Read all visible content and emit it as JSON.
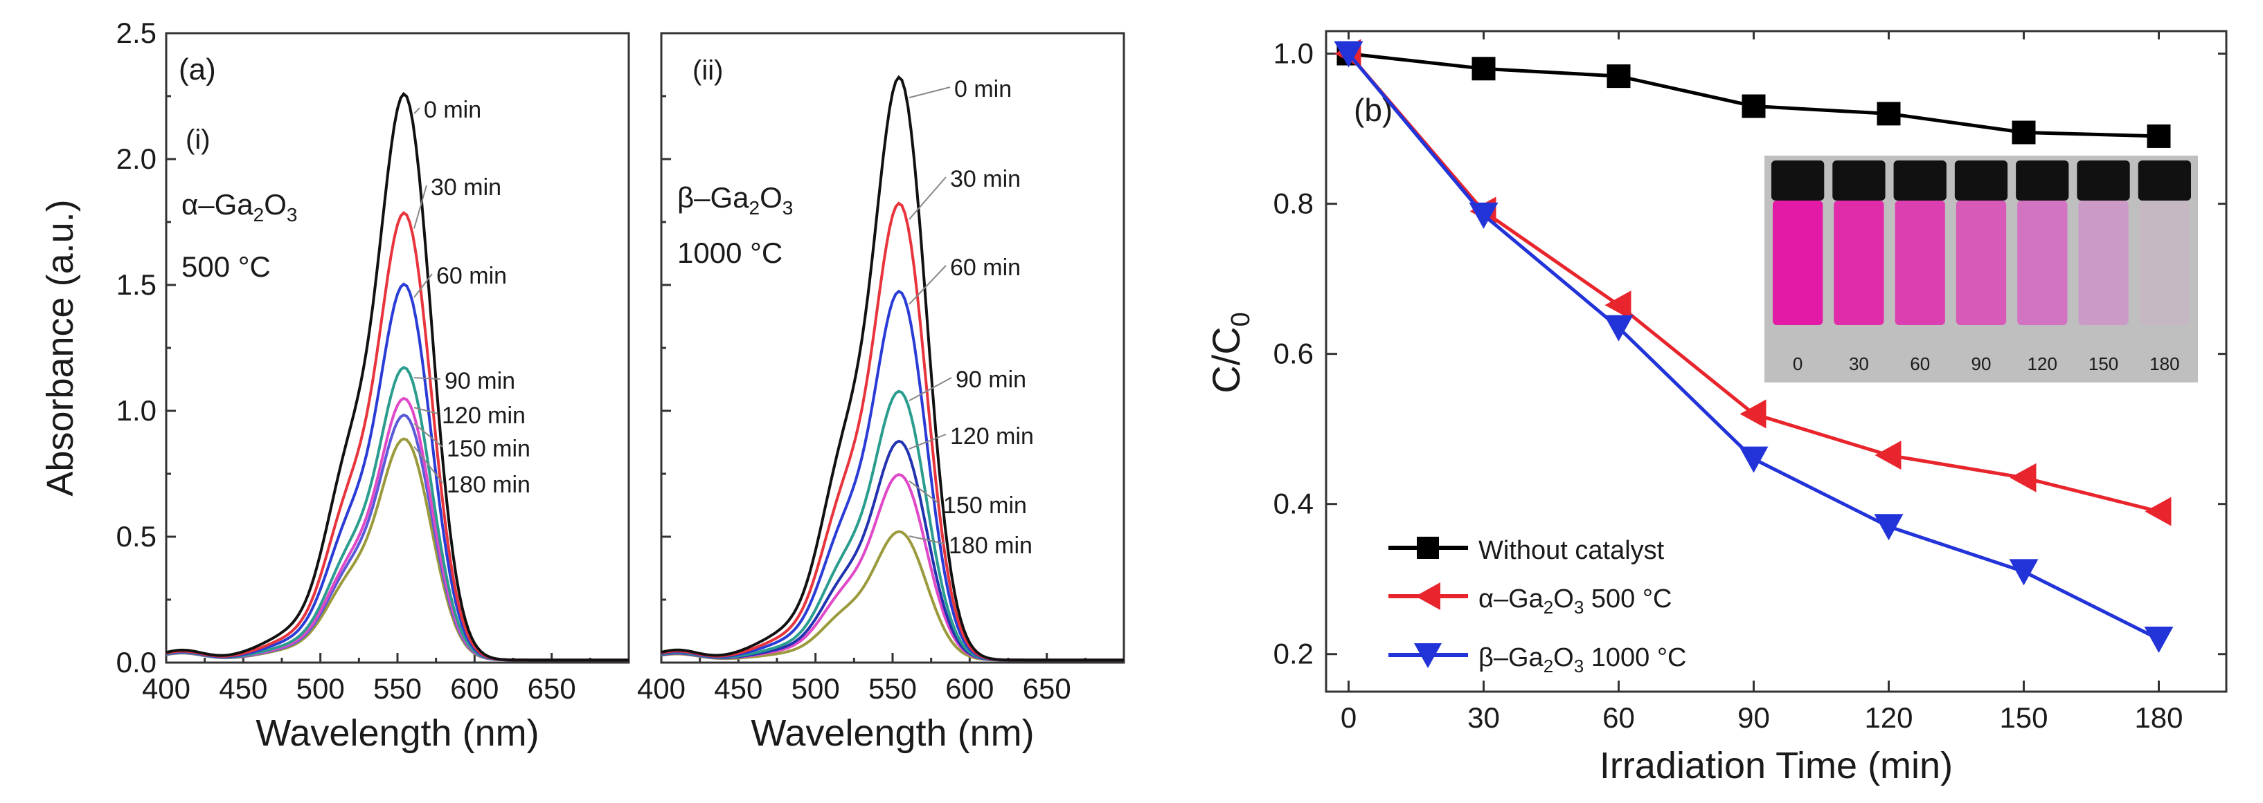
{
  "chart_data": [
    {
      "panel": "a-i",
      "type": "line",
      "panel_label": "(a)",
      "subpanel": "(i)",
      "material": "α–Ga",
      "material_sub1": "2",
      "material_mid": "O",
      "material_sub2": "3",
      "temperature": "500 °C",
      "xlabel": "Wavelength (nm)",
      "ylabel": "Absorbance (a.u.)",
      "xlim": [
        400,
        700
      ],
      "ylim": [
        0,
        2.5
      ],
      "xticks": [
        "400",
        "450",
        "500",
        "550",
        "600",
        "650"
      ],
      "yticks": [
        "0.0",
        "0.5",
        "1.0",
        "1.5",
        "2.0",
        "2.5"
      ],
      "series": [
        {
          "name": "0 min",
          "peak": 2.38,
          "color": "#111111"
        },
        {
          "name": "30 min",
          "peak": 1.88,
          "color": "#e8343c"
        },
        {
          "name": "60 min",
          "peak": 1.58,
          "color": "#2a3cd6"
        },
        {
          "name": "90 min",
          "peak": 1.23,
          "color": "#2a9d8f"
        },
        {
          "name": "120 min",
          "peak": 1.1,
          "color": "#e049c8"
        },
        {
          "name": "150 min",
          "peak": 1.03,
          "color": "#5a5ad8"
        },
        {
          "name": "180 min",
          "peak": 0.93,
          "color": "#9b9a3c"
        }
      ]
    },
    {
      "panel": "a-ii",
      "type": "line",
      "subpanel": "(ii)",
      "material": "β–Ga",
      "material_sub1": "2",
      "material_mid": "O",
      "material_sub2": "3",
      "temperature": "1000 °C",
      "xlabel": "Wavelength (nm)",
      "xlim": [
        400,
        700
      ],
      "ylim": [
        0,
        2.5
      ],
      "xticks": [
        "400",
        "450",
        "500",
        "550",
        "600",
        "650"
      ],
      "series": [
        {
          "name": "0 min",
          "peak": 2.45,
          "color": "#111111"
        },
        {
          "name": "30 min",
          "peak": 1.92,
          "color": "#e8343c"
        },
        {
          "name": "60 min",
          "peak": 1.55,
          "color": "#2a3cd6"
        },
        {
          "name": "90 min",
          "peak": 1.13,
          "color": "#2a9d8f"
        },
        {
          "name": "120 min",
          "peak": 0.92,
          "color": "#2233b0"
        },
        {
          "name": "150 min",
          "peak": 0.78,
          "color": "#e049c8"
        },
        {
          "name": "180 min",
          "peak": 0.54,
          "color": "#9b9a3c"
        }
      ]
    },
    {
      "panel": "b",
      "type": "line",
      "panel_label": "(b)",
      "xlabel": "Irradiation Time (min)",
      "ylabel_main": "C/C",
      "ylabel_sub": "0",
      "xlim": [
        -5,
        195
      ],
      "ylim": [
        0.15,
        1.03
      ],
      "x": [
        0,
        30,
        60,
        90,
        120,
        150,
        180
      ],
      "xticks": [
        "0",
        "30",
        "60",
        "90",
        "120",
        "150",
        "180"
      ],
      "yticks": [
        "0.2",
        "0.4",
        "0.6",
        "0.8",
        "1.0"
      ],
      "series": [
        {
          "name": "Without catalyst",
          "marker": "square",
          "color": "#000000",
          "values": [
            1.0,
            0.98,
            0.97,
            0.93,
            0.92,
            0.895,
            0.89
          ]
        },
        {
          "name": "α–Ga2O3 500 °C",
          "label_a": "α–Ga",
          "label_sub1": "2",
          "label_mid": "O",
          "label_sub2": "3",
          "label_b": " 500 °C",
          "marker": "triangle-left",
          "color": "#e8252c",
          "values": [
            1.0,
            0.79,
            0.665,
            0.52,
            0.465,
            0.435,
            0.39
          ]
        },
        {
          "name": "β–Ga2O3 1000 °C",
          "label_a": "β–Ga",
          "label_sub1": "2",
          "label_mid": "O",
          "label_sub2": "3",
          "label_b": " 1000 °C",
          "marker": "triangle-down",
          "color": "#2233d8",
          "values": [
            1.0,
            0.785,
            0.635,
            0.46,
            0.37,
            0.31,
            0.22
          ]
        }
      ],
      "inset": {
        "vial_labels": [
          "0",
          "30",
          "60",
          "90",
          "120",
          "150",
          "180"
        ],
        "vial_colors": [
          "#e21aa6",
          "#e02ca8",
          "#dc40b0",
          "#d85ab8",
          "#d274c2",
          "#cc9ac6",
          "#c6b8c2"
        ]
      }
    }
  ]
}
